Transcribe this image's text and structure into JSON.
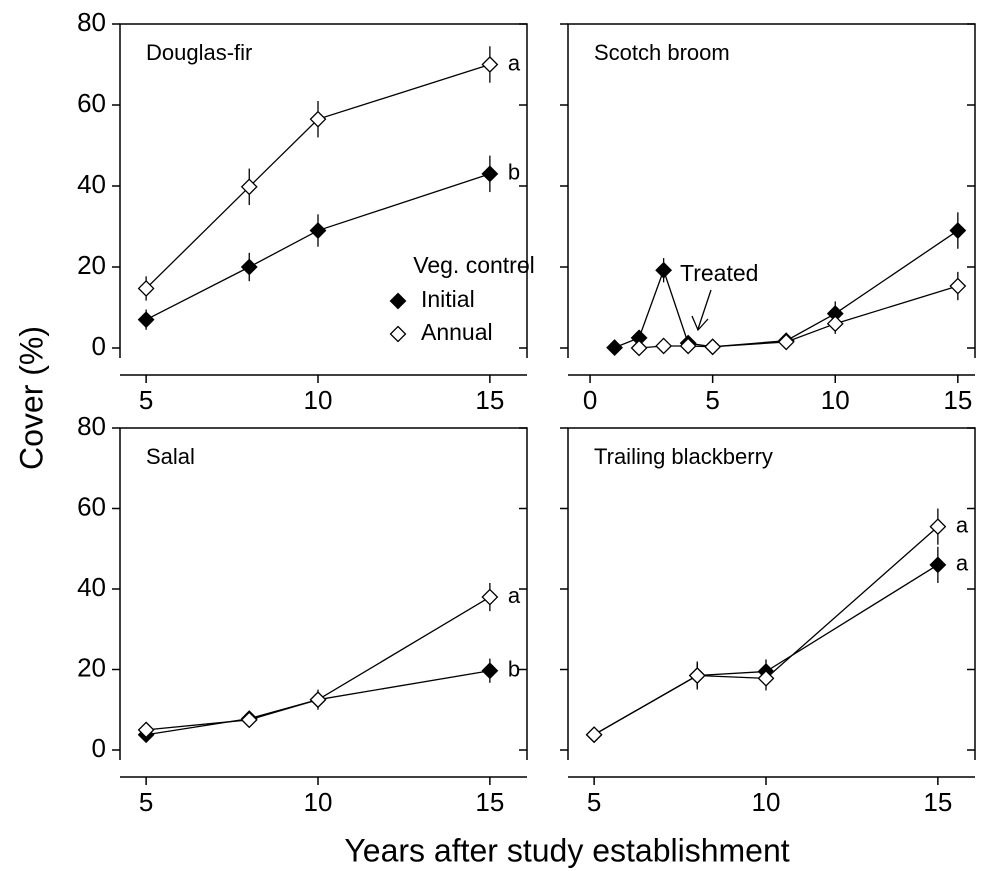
{
  "ylabel": "Cover (%)",
  "xlabel": "Years after study establishment",
  "chart_data": [
    {
      "type": "line",
      "title": "Douglas-fir",
      "x": [
        5,
        8,
        10,
        15
      ],
      "series": [
        {
          "name": "Initial",
          "color": "#000000",
          "marker": "filled",
          "letter": "b",
          "values": [
            7,
            20,
            29,
            43
          ],
          "errors": [
            2.5,
            3.5,
            4,
            4.5
          ]
        },
        {
          "name": "Annual",
          "color": "#000000",
          "marker": "open",
          "letter": "a",
          "values": [
            14.7,
            39.8,
            56.5,
            70
          ],
          "errors": [
            3,
            4.5,
            4.5,
            4.5
          ]
        }
      ],
      "xlim": [
        4.24,
        16.08
      ],
      "xticks": [
        5,
        10,
        15
      ],
      "ylim": [
        0,
        80
      ],
      "yticks": [
        0,
        20,
        40,
        60,
        80
      ],
      "show_ytick_labels": true,
      "legend": {
        "title": "Veg. control",
        "position": "lower right"
      }
    },
    {
      "type": "line",
      "title": "Scotch broom",
      "x": [
        1,
        2,
        3,
        4,
        5,
        8,
        10,
        15
      ],
      "series": [
        {
          "name": "Initial",
          "color": "#000000",
          "marker": "filled",
          "values": [
            0.1,
            2.5,
            19.2,
            1.2,
            0.3,
            1.8,
            8.5,
            29
          ],
          "errors": [
            0.5,
            1,
            3,
            1,
            0.5,
            1,
            3,
            4.5
          ]
        },
        {
          "name": "Annual",
          "color": "#000000",
          "marker": "open",
          "values": [
            null,
            0,
            0.5,
            0.5,
            0.3,
            1.5,
            6,
            15.3
          ],
          "errors": [
            null,
            0.3,
            0.5,
            0.5,
            0.3,
            0.8,
            2.5,
            3.5
          ]
        }
      ],
      "xlim": [
        -0.9,
        15.7
      ],
      "xticks": [
        0,
        5,
        10,
        15
      ],
      "ylim": [
        0,
        80
      ],
      "yticks": [
        0,
        20,
        40,
        60,
        80
      ],
      "show_ytick_labels": false,
      "annotation": "Treated"
    },
    {
      "type": "line",
      "title": "Salal",
      "x": [
        5,
        8,
        10,
        15
      ],
      "series": [
        {
          "name": "Initial",
          "color": "#000000",
          "marker": "filled",
          "letter": "b",
          "values": [
            3.8,
            7.8,
            12.5,
            19.7
          ],
          "errors": [
            1,
            1,
            2,
            3
          ]
        },
        {
          "name": "Annual",
          "color": "#000000",
          "marker": "open",
          "letter": "a",
          "values": [
            5,
            7.5,
            12.5,
            38
          ],
          "errors": [
            1,
            1,
            2.5,
            3.5
          ]
        }
      ],
      "xlim": [
        4.24,
        16.08
      ],
      "xticks": [
        5,
        10,
        15
      ],
      "ylim": [
        0,
        80
      ],
      "yticks": [
        0,
        20,
        40,
        60,
        80
      ],
      "show_ytick_labels": true
    },
    {
      "type": "line",
      "title": "Trailing blackberry",
      "x": [
        5,
        8,
        10,
        15
      ],
      "series": [
        {
          "name": "Initial",
          "color": "#000000",
          "marker": "filled",
          "letter": "a",
          "values": [
            3.8,
            18.5,
            19.5,
            46
          ],
          "errors": [
            0.5,
            3,
            3,
            4.5
          ]
        },
        {
          "name": "Annual",
          "color": "#000000",
          "marker": "open",
          "letter": "a",
          "values": [
            3.8,
            18.5,
            17.8,
            55.5
          ],
          "errors": [
            0.5,
            3.5,
            3,
            4.5
          ]
        }
      ],
      "xlim": [
        4.24,
        16.08
      ],
      "xticks": [
        5,
        10,
        15
      ],
      "ylim": [
        0,
        80
      ],
      "yticks": [
        0,
        20,
        40,
        60,
        80
      ],
      "show_ytick_labels": false
    }
  ]
}
